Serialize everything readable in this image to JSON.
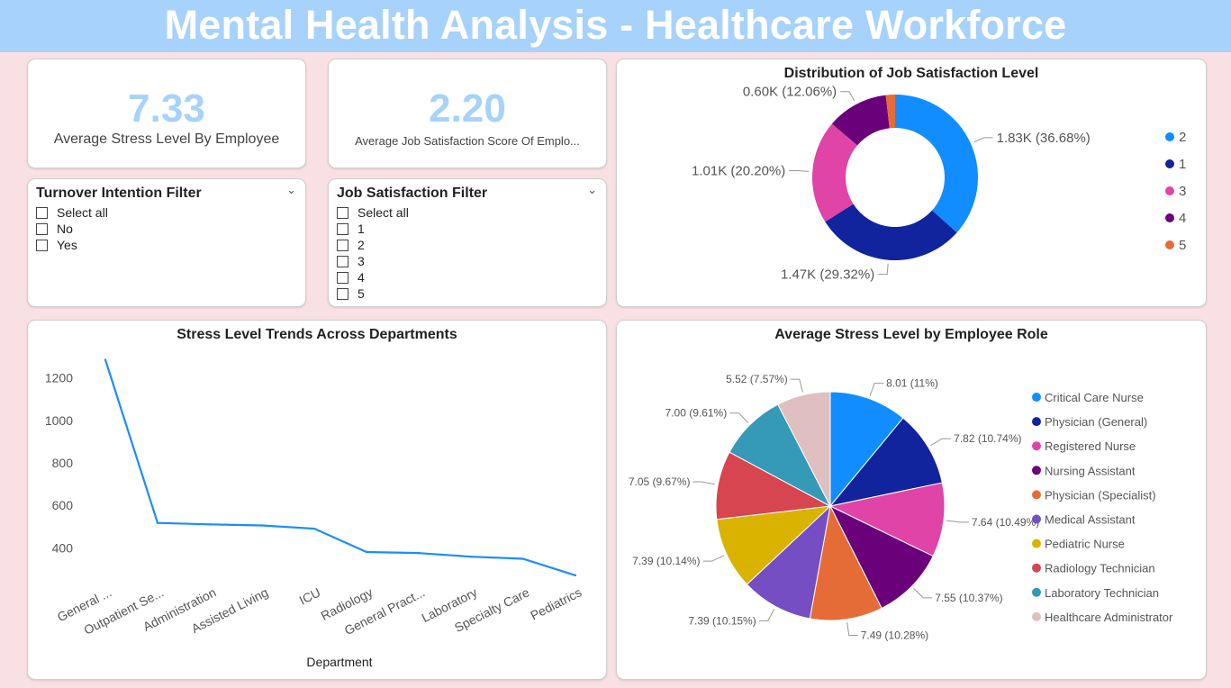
{
  "header": {
    "title": "Mental Health Analysis - Healthcare Workforce"
  },
  "kpis": {
    "stress": {
      "value": "7.33",
      "label": "Average Stress Level By Employee"
    },
    "satisfaction": {
      "value": "2.20",
      "label": "Average Job Satisfaction Score Of Emplo..."
    }
  },
  "filters": {
    "turnover": {
      "title": "Turnover Intention Filter",
      "options": [
        "Select all",
        "No",
        "Yes"
      ]
    },
    "job_satisfaction": {
      "title": "Job Satisfaction Filter",
      "options": [
        "Select all",
        "1",
        "2",
        "3",
        "4",
        "5"
      ]
    }
  },
  "colors": {
    "accent": "#a6d2fc",
    "line": "#1a8cff"
  },
  "chart_data": [
    {
      "type": "donut",
      "title": "Distribution of Job Satisfaction Level",
      "start_angle_deg": 0,
      "slices": [
        {
          "name": "2",
          "value": 1830,
          "label": "1.83K (36.68%)",
          "color": "#118dff"
        },
        {
          "name": "1",
          "value": 1470,
          "label": "1.47K (29.32%)",
          "color": "#12239e"
        },
        {
          "name": "3",
          "value": 1010,
          "label": "1.01K (20.20%)",
          "color": "#e044a7"
        },
        {
          "name": "4",
          "value": 600,
          "label": "0.60K (12.06%)",
          "color": "#6b007b"
        },
        {
          "name": "5",
          "value": 90,
          "label": "",
          "color": "#e66c37"
        }
      ],
      "legend": [
        "2",
        "1",
        "3",
        "4",
        "5"
      ],
      "legend_position": "right"
    },
    {
      "type": "line",
      "title": "Stress Level Trends Across Departments",
      "xlabel": "Department",
      "ylabel": "",
      "categories": [
        "General ...",
        "Outpatient Se...",
        "Administration",
        "Assisted Living",
        "ICU",
        "Radiology",
        "General Pract...",
        "Laboratory",
        "Specialty Care",
        "Pediatrics"
      ],
      "values": [
        1285,
        517,
        510,
        505,
        490,
        380,
        375,
        358,
        348,
        270
      ],
      "y_ticks": [
        400,
        600,
        800,
        1000,
        1200
      ],
      "ylim": [
        240,
        1300
      ],
      "grid": false,
      "color": "#1a8cff"
    },
    {
      "type": "pie",
      "title": "Average Stress Level by Employee Role",
      "slices": [
        {
          "name": "Critical Care Nurse",
          "value": 8.01,
          "label": "8.01 (11%)",
          "color": "#118dff"
        },
        {
          "name": "Physician (General)",
          "value": 7.82,
          "label": "7.82 (10.74%)",
          "color": "#12239e"
        },
        {
          "name": "Registered Nurse",
          "value": 7.64,
          "label": "7.64 (10.49%)",
          "color": "#e044a7"
        },
        {
          "name": "Nursing Assistant",
          "value": 7.55,
          "label": "7.55 (10.37%)",
          "color": "#6b007b"
        },
        {
          "name": "Physician (Specialist)",
          "value": 7.49,
          "label": "7.49 (10.28%)",
          "color": "#e66c37"
        },
        {
          "name": "Medical Assistant",
          "value": 7.39,
          "label": "7.39 (10.15%)",
          "color": "#744ec2"
        },
        {
          "name": "Pediatric Nurse",
          "value": 7.39,
          "label": "7.39 (10.14%)",
          "color": "#d9b300"
        },
        {
          "name": "Radiology Technician",
          "value": 7.05,
          "label": "7.05 (9.67%)",
          "color": "#d64550"
        },
        {
          "name": "Laboratory Technician",
          "value": 7.0,
          "label": "7.00 (9.61%)",
          "color": "#3599b8"
        },
        {
          "name": "Healthcare Administrator",
          "value": 5.52,
          "label": "5.52 (7.57%)",
          "color": "#dfbfbf"
        }
      ],
      "legend_position": "right"
    }
  ]
}
